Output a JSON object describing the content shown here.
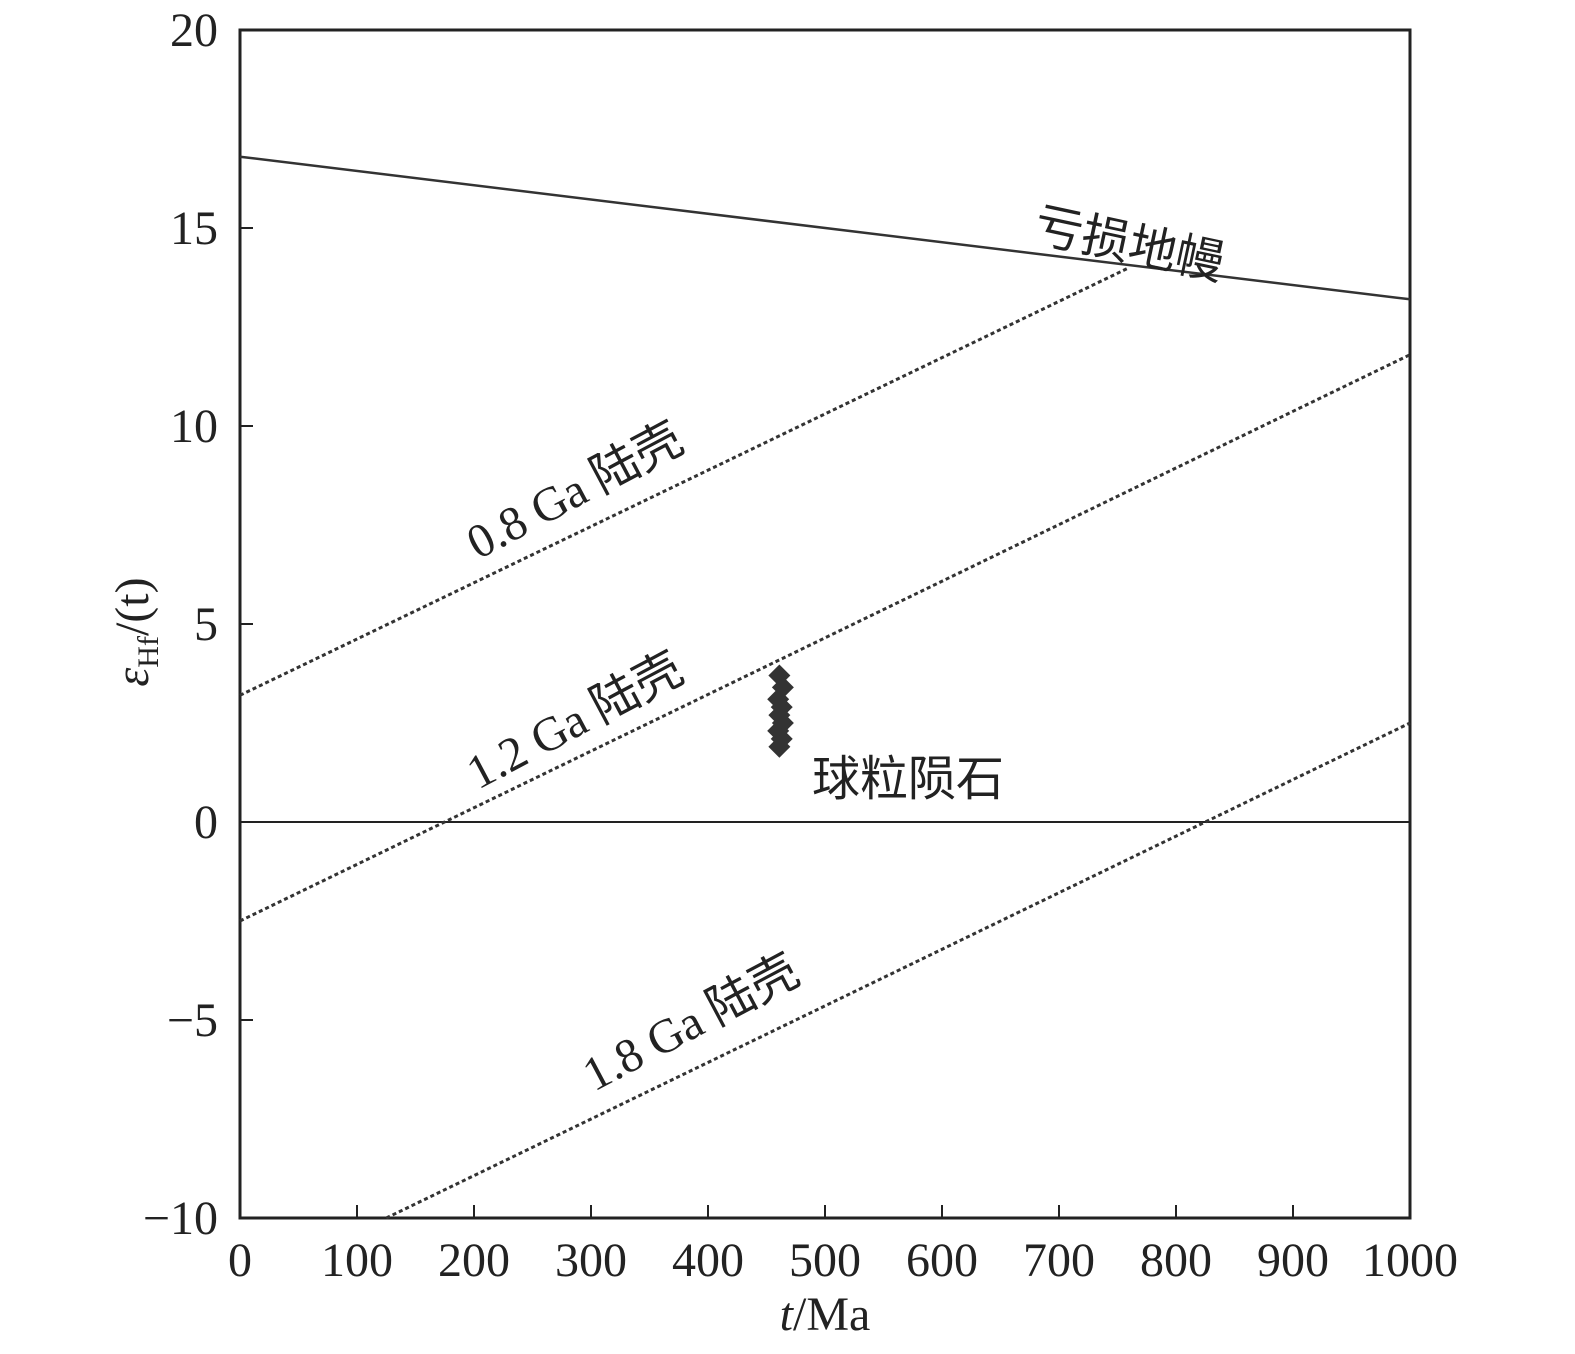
{
  "chart_data": {
    "type": "line",
    "xlabel_italic": "t",
    "xlabel_rest": "/Ma",
    "ylabel_symbol": "ε",
    "ylabel_sub": "Hf",
    "ylabel_rest": "(t)",
    "xlim": [
      0,
      1000
    ],
    "ylim": [
      -10,
      20
    ],
    "xticks": [
      0,
      100,
      200,
      300,
      400,
      500,
      600,
      700,
      800,
      900,
      1000
    ],
    "yticks": [
      -10,
      -5,
      0,
      5,
      10,
      15,
      20
    ],
    "ytick_labels": [
      "−10",
      "−5",
      "0",
      "5",
      "10",
      "15",
      "20"
    ],
    "grid": false,
    "series": [
      {
        "name": "亏损地幔",
        "style": "solid",
        "x": [
          0,
          1000
        ],
        "y": [
          16.8,
          13.2
        ]
      },
      {
        "name": "0.8 Ga 陆壳",
        "style": "dotted",
        "x": [
          0,
          760
        ],
        "y": [
          3.2,
          14.0
        ]
      },
      {
        "name": "1.2 Ga 陆壳",
        "style": "dotted",
        "x": [
          0,
          1000
        ],
        "y": [
          -2.5,
          11.8
        ]
      },
      {
        "name": "1.8 Ga 陆壳",
        "style": "dotted",
        "x": [
          125,
          1000
        ],
        "y": [
          -10,
          2.5
        ]
      }
    ],
    "reference_line": {
      "y": 0
    },
    "scatter": {
      "name": "球粒陨石",
      "points": [
        {
          "x": 461,
          "y": 3.7
        },
        {
          "x": 464,
          "y": 3.4
        },
        {
          "x": 460,
          "y": 3.1
        },
        {
          "x": 463,
          "y": 2.9
        },
        {
          "x": 461,
          "y": 2.7
        },
        {
          "x": 464,
          "y": 2.5
        },
        {
          "x": 460,
          "y": 2.3
        },
        {
          "x": 463,
          "y": 2.1
        },
        {
          "x": 461,
          "y": 1.9
        }
      ]
    },
    "annotations": [
      "亏损地幔",
      "0.8 Ga 陆壳",
      "1.2 Ga 陆壳",
      "1.8 Ga 陆壳",
      "球粒陨石"
    ]
  }
}
